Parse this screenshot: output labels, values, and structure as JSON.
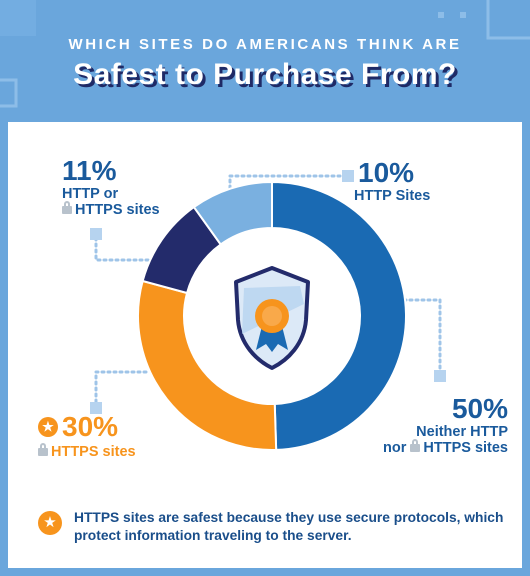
{
  "header": {
    "kicker": "WHICH SITES DO AMERICANS THINK ARE",
    "headline": "Safest to Purchase From?"
  },
  "colors": {
    "background": "#6aa6dc",
    "dark_navy": "#232b6b",
    "blue": "#1a6ab3",
    "light_blue": "#7ab0e0",
    "orange": "#f7941d",
    "label_blue": "#1a5a9c"
  },
  "chart_data": {
    "type": "pie",
    "subtype": "donut",
    "categories": [
      "Neither HTTP nor HTTPS sites",
      "HTTPS sites",
      "HTTP or HTTPS sites",
      "HTTP Sites"
    ],
    "values": [
      50,
      30,
      11,
      10
    ],
    "labels": [
      {
        "pct": "50%",
        "line1": "Neither HTTP",
        "line2_pre": "nor",
        "line2": "HTTPS sites"
      },
      {
        "pct": "30%",
        "line1": "HTTPS sites"
      },
      {
        "pct": "11%",
        "line1": "HTTP or",
        "line2": "HTTPS sites"
      },
      {
        "pct": "10%",
        "line1": "HTTP Sites"
      }
    ],
    "center_icon": "shield-award-icon"
  },
  "note": {
    "icon": "star-icon",
    "text": "HTTPS sites are safest because they use secure protocols, which protect information traveling to the server."
  }
}
